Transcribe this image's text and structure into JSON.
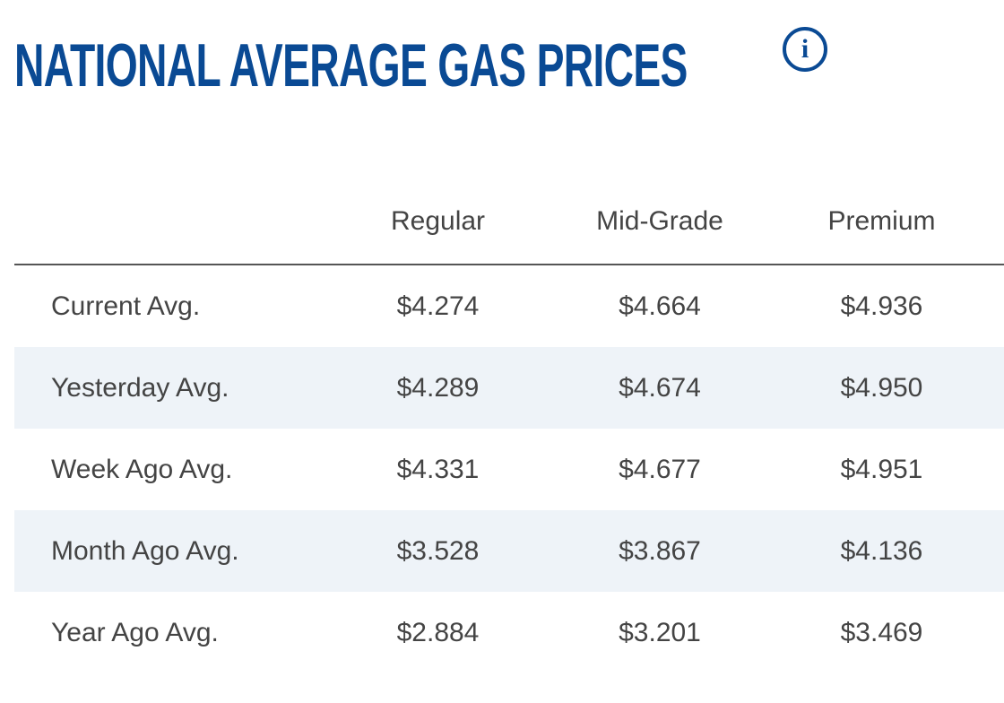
{
  "header": {
    "title": "NATIONAL AVERAGE GAS PRICES",
    "info_icon": "i"
  },
  "table": {
    "columns": [
      "",
      "Regular",
      "Mid-Grade",
      "Premium"
    ],
    "rows": [
      {
        "label": "Current Avg.",
        "regular": "$4.274",
        "mid_grade": "$4.664",
        "premium": "$4.936"
      },
      {
        "label": "Yesterday Avg.",
        "regular": "$4.289",
        "mid_grade": "$4.674",
        "premium": "$4.950"
      },
      {
        "label": "Week Ago Avg.",
        "regular": "$4.331",
        "mid_grade": "$4.677",
        "premium": "$4.951"
      },
      {
        "label": "Month Ago Avg.",
        "regular": "$3.528",
        "mid_grade": "$3.867",
        "premium": "$4.136"
      },
      {
        "label": "Year Ago Avg.",
        "regular": "$2.884",
        "mid_grade": "$3.201",
        "premium": "$3.469"
      }
    ]
  },
  "colors": {
    "title": "#0a4a94",
    "text": "#444444",
    "row_alt_bg": "#eef3f8",
    "header_rule": "#555555"
  }
}
